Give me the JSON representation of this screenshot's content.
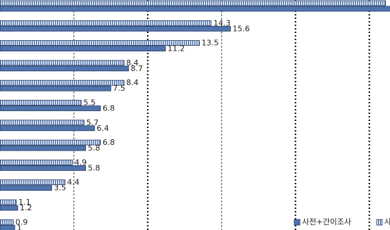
{
  "chart_data": {
    "type": "hbar",
    "series": [
      {
        "name": "사전+간이조사",
        "color": "#4f74ad",
        "values": [
          26.5,
          15.6,
          11.2,
          8.7,
          7.5,
          6.8,
          6.4,
          5.8,
          5.8,
          3.5,
          1.2,
          1.0
        ]
      },
      {
        "name": "사",
        "color": "#4f74ad",
        "pattern": "hatched",
        "values": [
          26.1,
          14.3,
          13.5,
          8.4,
          8.4,
          5.5,
          5.7,
          6.8,
          4.9,
          4.4,
          1.1,
          0.9
        ]
      }
    ],
    "xlim": [
      0,
      26.4
    ],
    "xticks": [
      5,
      10,
      15,
      20,
      25
    ],
    "grid": true
  }
}
